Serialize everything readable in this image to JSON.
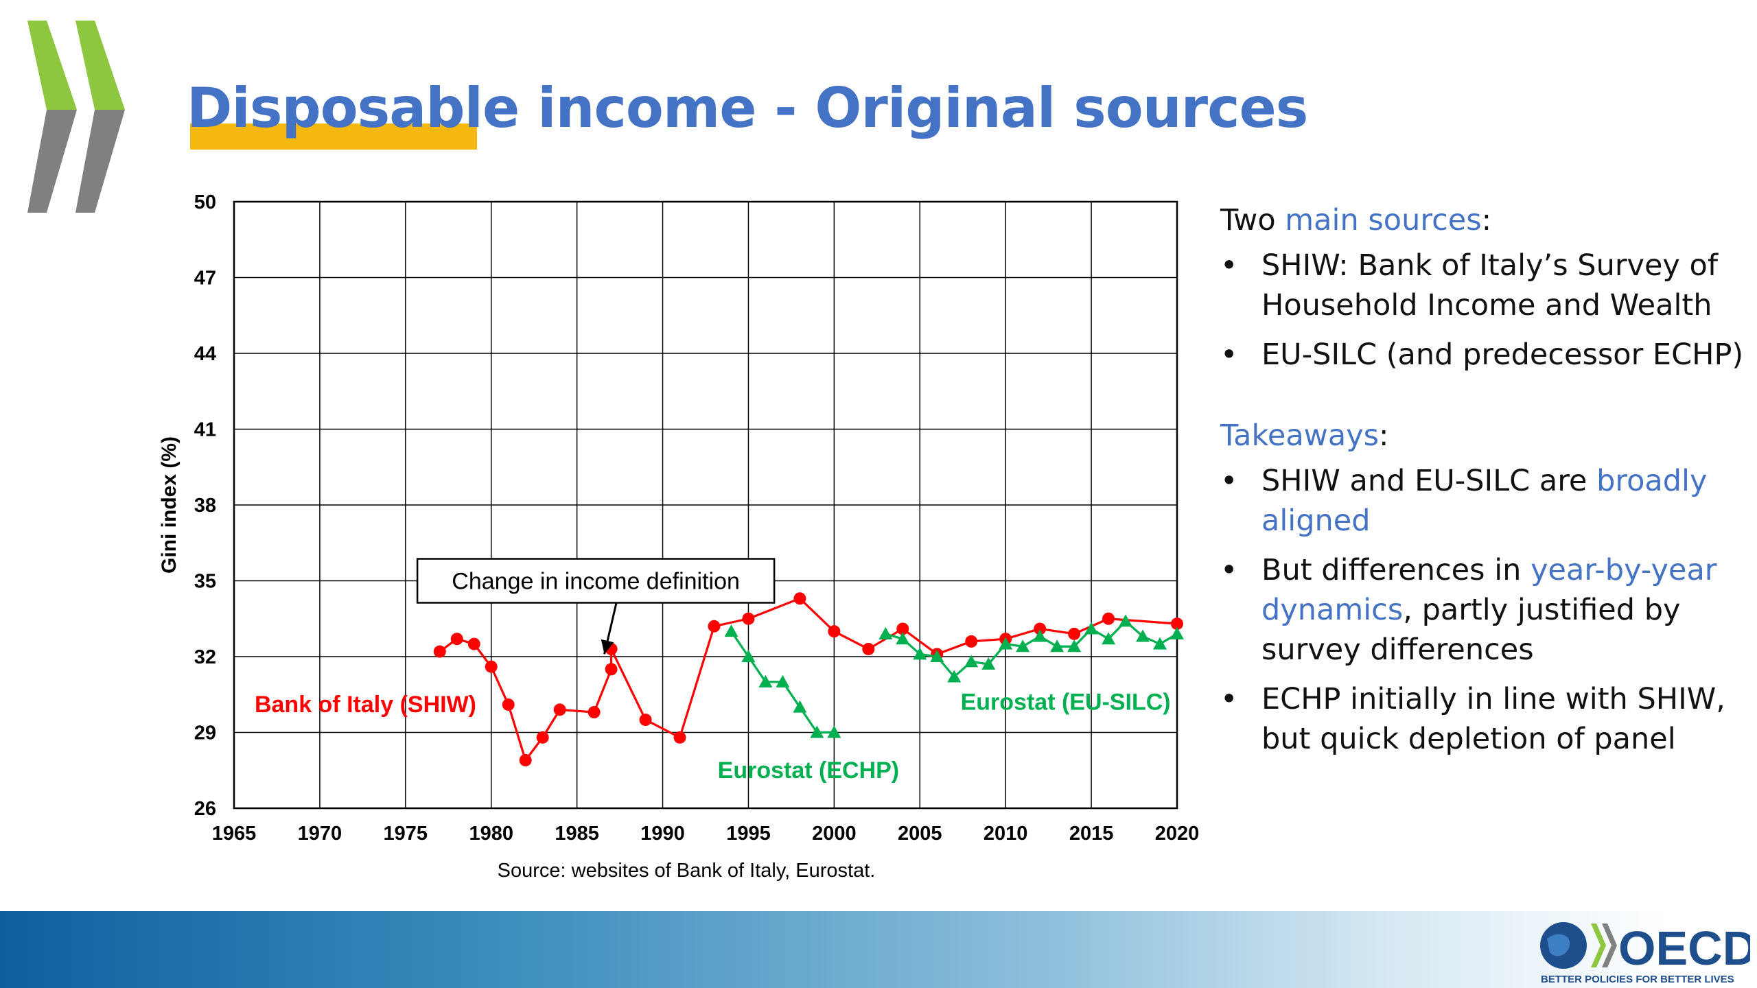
{
  "slide": {
    "title": "Disposable income - Original sources"
  },
  "chart_data": {
    "type": "line",
    "xlabel": "",
    "ylabel": "Gini index (%)",
    "xlim": [
      1965,
      2020
    ],
    "ylim": [
      26,
      50
    ],
    "x_ticks": [
      1965,
      1970,
      1975,
      1980,
      1985,
      1990,
      1995,
      2000,
      2005,
      2010,
      2015,
      2020
    ],
    "y_ticks": [
      26,
      29,
      32,
      35,
      38,
      41,
      44,
      47,
      50
    ],
    "grid": true,
    "series": [
      {
        "name": "Bank of Italy (SHIW)",
        "color": "#ff0000",
        "marker": "circle",
        "points": [
          [
            1977,
            32.2
          ],
          [
            1978,
            32.7
          ],
          [
            1979,
            32.5
          ],
          [
            1980,
            31.6
          ],
          [
            1981,
            30.1
          ],
          [
            1982,
            27.9
          ],
          [
            1983,
            28.8
          ],
          [
            1984,
            29.9
          ],
          [
            1986,
            29.8
          ],
          [
            1987,
            31.5
          ],
          [
            1987,
            32.3
          ],
          [
            1989,
            29.5
          ],
          [
            1991,
            28.8
          ],
          [
            1993,
            33.2
          ],
          [
            1995,
            33.5
          ],
          [
            1998,
            34.3
          ],
          [
            2000,
            33.0
          ],
          [
            2002,
            32.3
          ],
          [
            2004,
            33.1
          ],
          [
            2006,
            32.1
          ],
          [
            2008,
            32.6
          ],
          [
            2010,
            32.7
          ],
          [
            2012,
            33.1
          ],
          [
            2014,
            32.9
          ],
          [
            2016,
            33.5
          ],
          [
            2020,
            33.3
          ]
        ]
      },
      {
        "name": "Eurostat (ECHP)",
        "color": "#00b050",
        "marker": "triangle",
        "points": [
          [
            1994,
            33.0
          ],
          [
            1995,
            32.0
          ],
          [
            1996,
            31.0
          ],
          [
            1997,
            31.0
          ],
          [
            1998,
            30.0
          ],
          [
            1999,
            29.0
          ],
          [
            2000,
            29.0
          ]
        ]
      },
      {
        "name": "Eurostat (EU-SILC)",
        "color": "#00b050",
        "marker": "triangle",
        "points": [
          [
            2003,
            32.9
          ],
          [
            2004,
            32.7
          ],
          [
            2005,
            32.1
          ],
          [
            2006,
            32.0
          ],
          [
            2007,
            31.2
          ],
          [
            2008,
            31.8
          ],
          [
            2009,
            31.7
          ],
          [
            2010,
            32.5
          ],
          [
            2011,
            32.4
          ],
          [
            2012,
            32.8
          ],
          [
            2013,
            32.4
          ],
          [
            2014,
            32.4
          ],
          [
            2015,
            33.1
          ],
          [
            2016,
            32.7
          ],
          [
            2017,
            33.4
          ],
          [
            2018,
            32.8
          ],
          [
            2019,
            32.5
          ],
          [
            2020,
            32.9
          ]
        ]
      }
    ],
    "series_labels": [
      {
        "text": "Bank of Italy (SHIW)",
        "x": 1966.2,
        "y": 29.8,
        "anchor": "start",
        "color": "#ff0000"
      },
      {
        "text": "Eurostat (ECHP)",
        "x": 1998.5,
        "y": 27.2,
        "anchor": "middle",
        "color": "#00b050"
      },
      {
        "text": "Eurostat (EU-SILC)",
        "x": 2013.5,
        "y": 29.9,
        "anchor": "middle",
        "color": "#00b050"
      }
    ],
    "annotation": {
      "text": "Change in income definition",
      "x": 1986.1,
      "y": 35.0,
      "arrow_to": [
        1986.6,
        32.1
      ]
    },
    "source": "Source: websites of Bank of Italy, Eurostat."
  },
  "side": {
    "two": "Two ",
    "main_sources": "main sources",
    "colon1": ":",
    "bullet1": "SHIW: Bank of Italy’s Survey of Household Income and Wealth",
    "bullet2": "EU-SILC (and predecessor ECHP)",
    "takeaways": "Takeaways",
    "colon2": ":",
    "b3_a": "SHIW and EU-SILC are ",
    "b3_b": "broadly aligned",
    "b4_a": "But differences in ",
    "b4_b": "year-by-year dynamics",
    "b4_c": ", partly justified by survey differences",
    "bullet5": "ECHP initially in line with SHIW, but quick depletion of panel",
    "bullet_char": "•"
  },
  "logo": {
    "text": "OECD",
    "tagline": "BETTER POLICIES FOR BETTER LIVES",
    "colors": {
      "green": "#8dc63f",
      "grey": "#808080",
      "navy": "#1f4e8c"
    }
  }
}
